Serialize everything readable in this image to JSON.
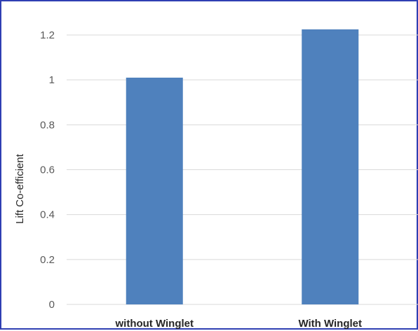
{
  "chart_data": {
    "type": "bar",
    "categories": [
      "without Winglet",
      "With Winglet"
    ],
    "values": [
      1.01,
      1.225
    ],
    "title": "",
    "xlabel": "",
    "ylabel": "Lift Co-efficient",
    "ylim": [
      0,
      1.2
    ],
    "yticks": [
      "0",
      "0.2",
      "0.4",
      "0.6",
      "0.8",
      "1",
      "1.2"
    ],
    "grid": true,
    "legend": "none",
    "bar_color": "#4f81bd",
    "grid_color": "#d9d9d9"
  }
}
